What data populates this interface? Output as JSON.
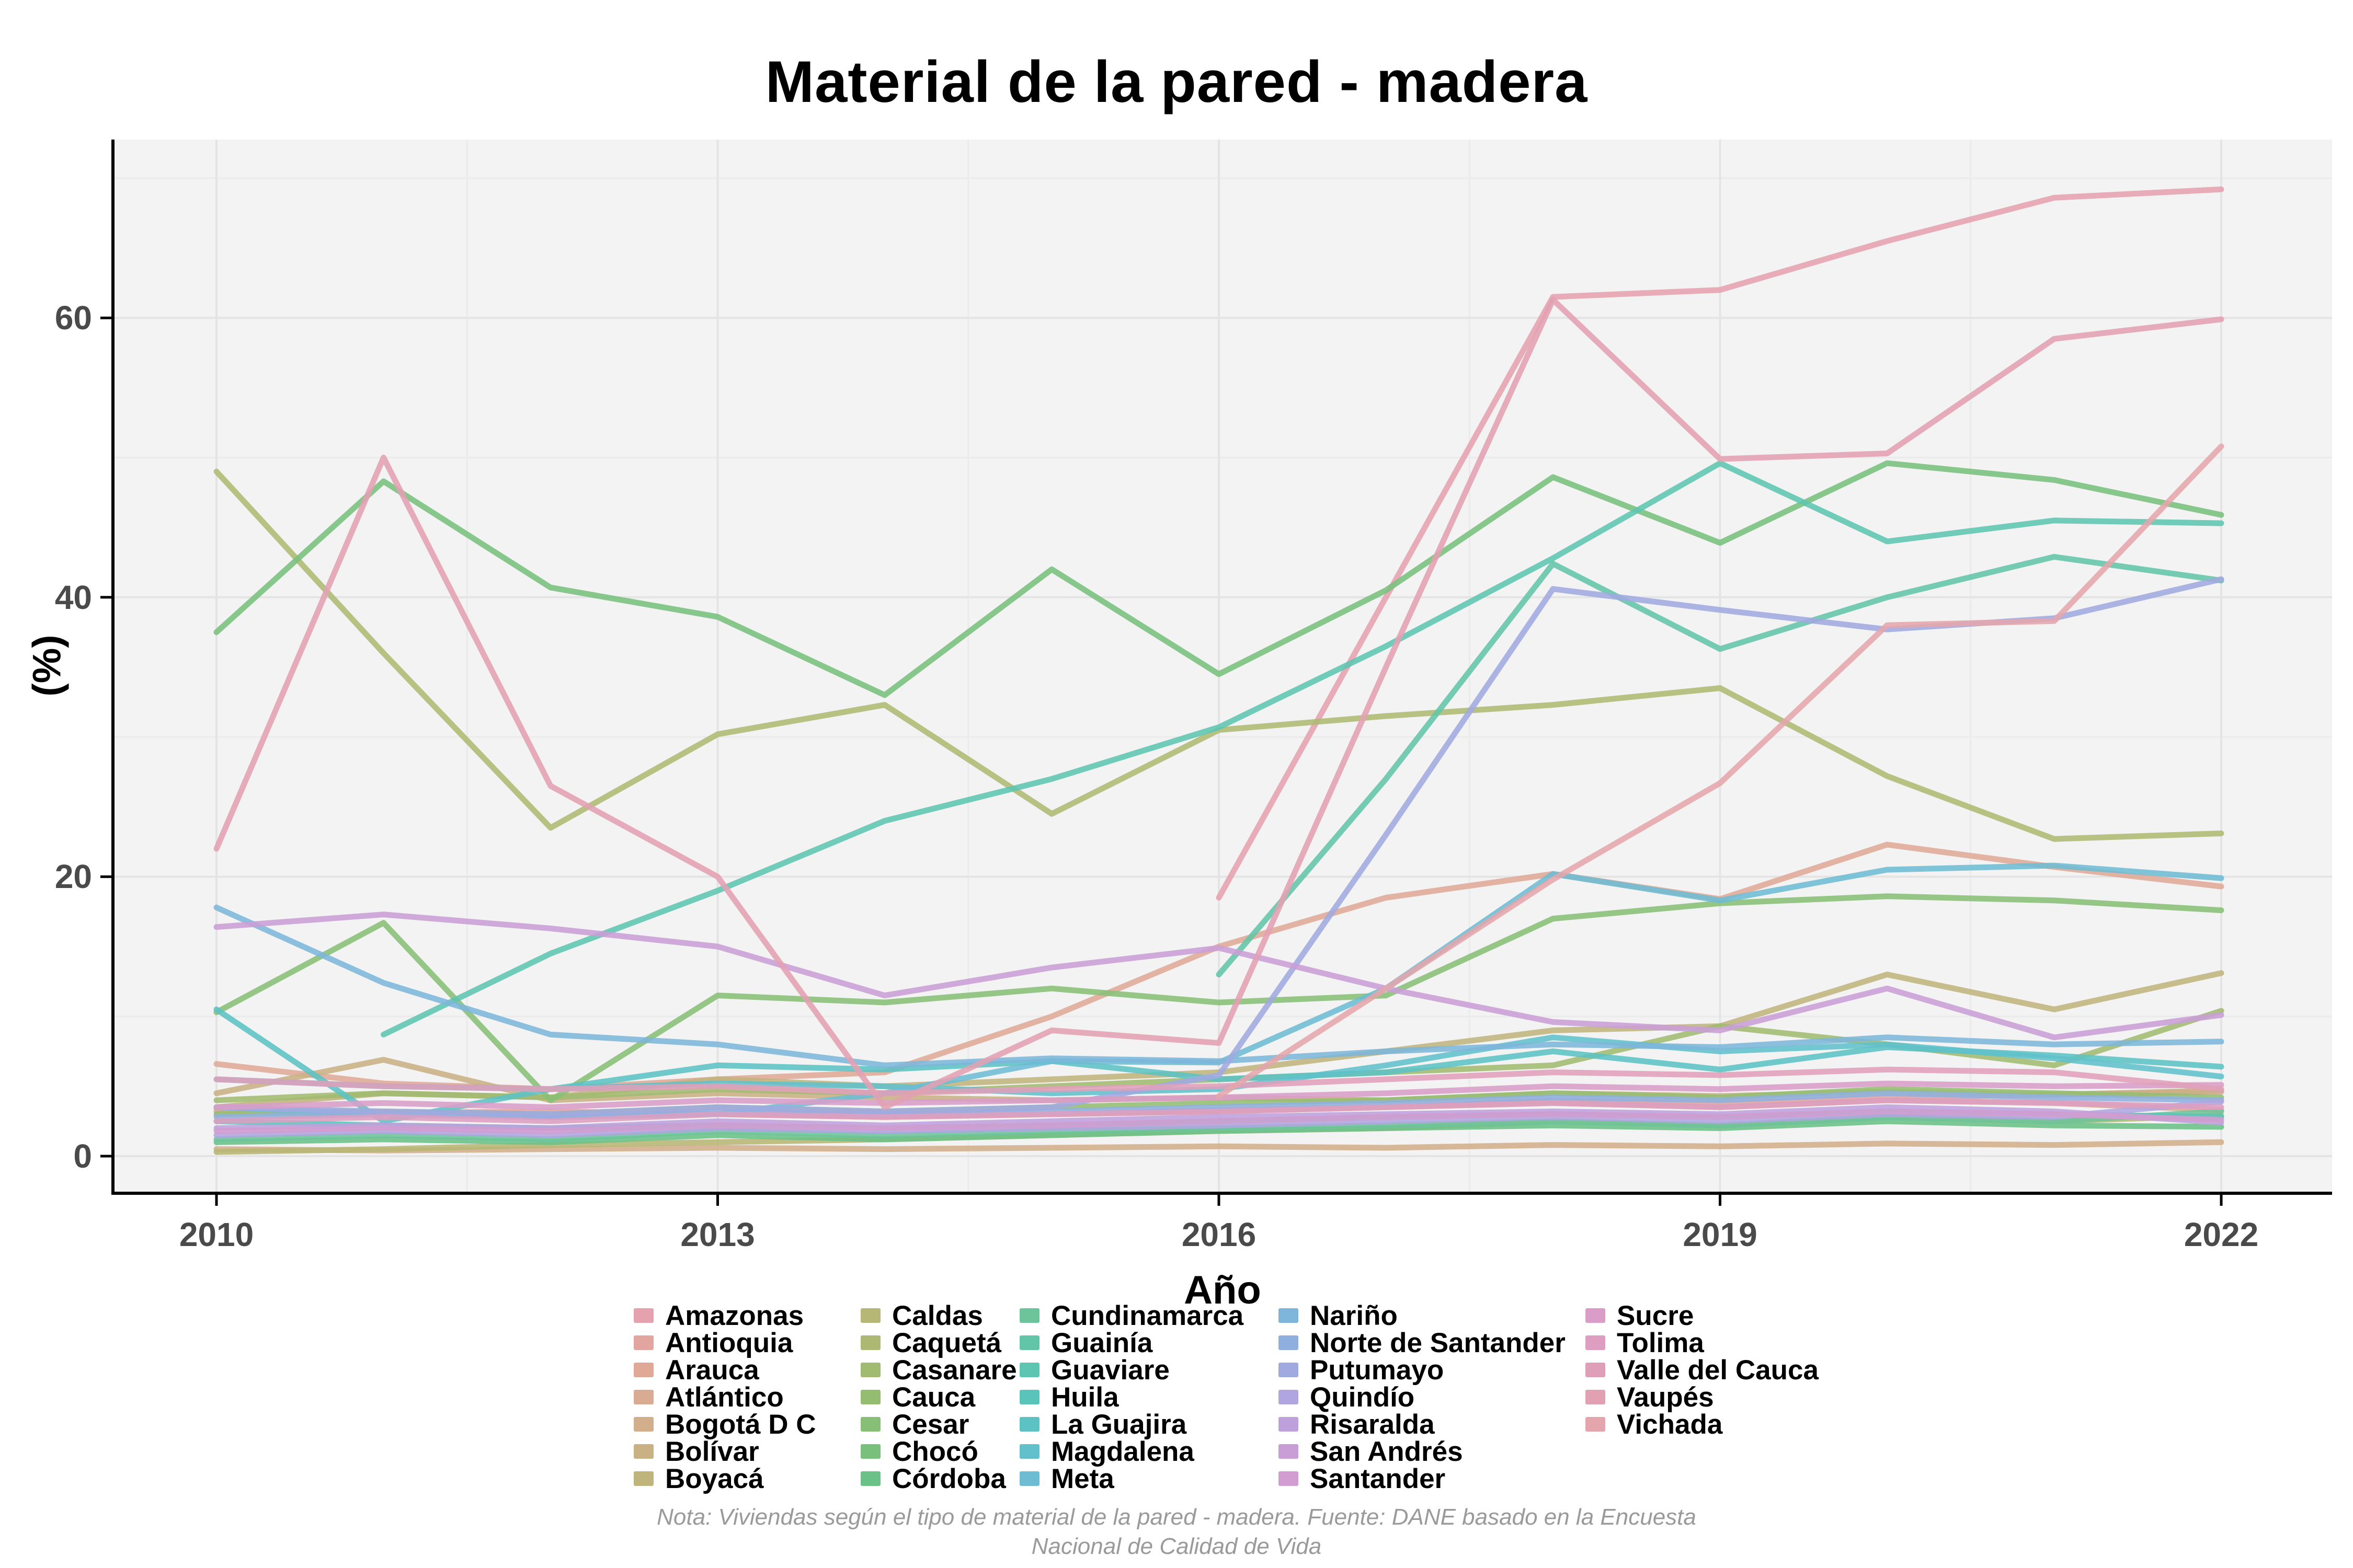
{
  "title": "Material de la pared - madera",
  "axes": {
    "x_label": "Año",
    "y_label": "(%)",
    "x_ticks": [
      2010,
      2013,
      2016,
      2019,
      2022
    ],
    "y_ticks": [
      0,
      20,
      40,
      60
    ]
  },
  "caption": {
    "line1": "Nota: Viviendas según el tipo de material de la pared - madera. Fuente: DANE basado en la Encuesta",
    "line2": "Nacional de Calidad de Vida"
  },
  "panel": {
    "background": "#f3f3f3",
    "grid_major": "#e4e4e4",
    "grid_minor": "#ebebeb",
    "axis_line": "#000000",
    "tick_text_color": "#4a4a4a"
  },
  "chart_data": {
    "type": "line",
    "title": "Material de la pared - madera",
    "xlabel": "Año",
    "ylabel": "(%)",
    "xlim": [
      2009.4,
      2022.7
    ],
    "ylim": [
      -2.6,
      72.8
    ],
    "grid": true,
    "legend_position": "bottom",
    "legend_columns": 5,
    "x": [
      2010,
      2011,
      2012,
      2013,
      2014,
      2015,
      2016,
      2017,
      2018,
      2019,
      2020,
      2021,
      2022
    ],
    "x_minor_gridlines": [
      2011.5,
      2014.5,
      2017.5,
      2020.5
    ],
    "y_minor_gridlines": [
      10,
      30,
      50,
      70
    ],
    "series": [
      {
        "name": "Amazonas",
        "color": "#e5a2ae",
        "values": [
          null,
          null,
          null,
          null,
          null,
          null,
          18.5,
          40,
          61.5,
          62,
          65.5,
          68.6,
          69.2
        ]
      },
      {
        "name": "Antioquia",
        "color": "#e3a59f",
        "values": [
          3.4,
          3.1,
          3.2,
          3,
          2.9,
          3,
          3.3,
          3.5,
          4,
          3.8,
          4.2,
          4.4,
          4.6
        ]
      },
      {
        "name": "Arauca",
        "color": "#dfa897",
        "values": [
          6.6,
          5.2,
          4.8,
          5.5,
          6,
          10,
          15,
          18.5,
          20.2,
          18.4,
          22.3,
          20.7,
          19.3
        ]
      },
      {
        "name": "Atlántico",
        "color": "#d9ab92",
        "values": [
          3.2,
          3,
          2.8,
          3,
          2.8,
          3,
          3.2,
          3.5,
          3.8,
          3.5,
          4,
          3.8,
          3.3
        ]
      },
      {
        "name": "Bogotá D C",
        "color": "#d2ae8a",
        "values": [
          0.5,
          0.4,
          0.5,
          0.6,
          0.5,
          0.6,
          0.7,
          0.6,
          0.8,
          0.7,
          0.9,
          0.8,
          1
        ]
      },
      {
        "name": "Bolívar",
        "color": "#cab184",
        "values": [
          4.5,
          6.9,
          4,
          4.5,
          4.2,
          4,
          4.2,
          4,
          4.5,
          4.3,
          4.6,
          4.4,
          4.7
        ]
      },
      {
        "name": "Boyacá",
        "color": "#c0b47d",
        "values": [
          3.5,
          4.5,
          4.2,
          5.5,
          5,
          5.5,
          6,
          7.5,
          9,
          9.3,
          13,
          10.5,
          13.1
        ]
      },
      {
        "name": "Caldas",
        "color": "#b7b775",
        "values": [
          0.3,
          0.5,
          0.8,
          1,
          1.2,
          1.5,
          1.8,
          2,
          2.5,
          2.2,
          2.8,
          2.5,
          2.9
        ]
      },
      {
        "name": "Caquetá",
        "color": "#adb972",
        "values": [
          49,
          36,
          23.5,
          30.2,
          32.3,
          24.5,
          30.5,
          31.5,
          32.3,
          33.5,
          27.2,
          22.7,
          23.1
        ]
      },
      {
        "name": "Casanare",
        "color": "#a1bb70",
        "values": [
          4,
          4.5,
          4.2,
          4.8,
          4.5,
          5,
          5.5,
          6,
          6.5,
          9.3,
          8,
          6.5,
          10.4
        ]
      },
      {
        "name": "Cauca",
        "color": "#94bd72",
        "values": [
          3,
          3.2,
          3,
          3.5,
          3.2,
          3.5,
          3.8,
          4,
          4.5,
          4.2,
          4.8,
          4.5,
          4.2
        ]
      },
      {
        "name": "Cesar",
        "color": "#87bf76",
        "values": [
          10.3,
          16.7,
          4,
          11.5,
          11,
          12,
          11,
          11.5,
          17,
          18.1,
          18.6,
          18.3,
          17.6
        ]
      },
      {
        "name": "Chocó",
        "color": "#79c07c",
        "values": [
          37.5,
          48.3,
          40.7,
          38.6,
          33,
          42,
          34.5,
          40.5,
          48.6,
          43.9,
          49.6,
          48.4,
          45.9
        ]
      },
      {
        "name": "Córdoba",
        "color": "#6bc187",
        "values": [
          1,
          1.2,
          1,
          1.5,
          1.2,
          1.5,
          1.8,
          2,
          2.2,
          2,
          2.5,
          2.2,
          2.1
        ]
      },
      {
        "name": "Cundinamarca",
        "color": "#6dc49b",
        "values": [
          1.2,
          1.5,
          1.2,
          1.8,
          1.5,
          1.8,
          2,
          2.2,
          2.5,
          2.2,
          2.8,
          2.5,
          3.2
        ]
      },
      {
        "name": "Guainía",
        "color": "#63c5a7",
        "values": [
          null,
          null,
          null,
          null,
          null,
          null,
          13,
          27,
          42.4,
          36.3,
          40,
          42.9,
          41.2
        ]
      },
      {
        "name": "Guaviare",
        "color": "#5dc5b1",
        "values": [
          null,
          8.7,
          14.5,
          19,
          24,
          27,
          30.7,
          36.5,
          42.8,
          49.6,
          44,
          45.5,
          45.3
        ]
      },
      {
        "name": "Huila",
        "color": "#5ac4ba",
        "values": [
          2.5,
          2.2,
          2,
          2.2,
          2,
          2.2,
          2.5,
          2.8,
          3,
          2.8,
          3.2,
          3,
          2.8
        ]
      },
      {
        "name": "La Guajira",
        "color": "#5cc2c3",
        "values": [
          10.5,
          2.5,
          4.8,
          6.5,
          6.2,
          6.8,
          5.5,
          6,
          7.5,
          6.2,
          7.8,
          7.2,
          6.4
        ]
      },
      {
        "name": "Magdalena",
        "color": "#61c0cb",
        "values": [
          5.5,
          5,
          4.8,
          5.2,
          5,
          4.5,
          4.8,
          6.5,
          8.5,
          7.5,
          8,
          7,
          5.7
        ]
      },
      {
        "name": "Meta",
        "color": "#6dbcd4",
        "values": [
          3.5,
          3,
          2.8,
          3,
          4.5,
          6.8,
          6.7,
          12,
          20.2,
          18.3,
          20.5,
          20.8,
          19.9
        ]
      },
      {
        "name": "Nariño",
        "color": "#7db6da",
        "values": [
          17.8,
          12.4,
          8.7,
          8,
          6.5,
          7,
          6.8,
          7.5,
          8,
          7.8,
          8.5,
          8,
          8.2
        ]
      },
      {
        "name": "Norte de Santander",
        "color": "#8fb0de",
        "values": [
          2.8,
          3,
          2.8,
          3.2,
          3,
          3.2,
          3.5,
          3.8,
          4.2,
          4,
          4.5,
          4.2,
          4
        ]
      },
      {
        "name": "Putumayo",
        "color": "#a0aae0",
        "values": [
          3.5,
          3.2,
          3,
          3.5,
          3.2,
          3.5,
          5.8,
          23,
          40.6,
          39.1,
          37.7,
          38.5,
          41.3
        ]
      },
      {
        "name": "Quindío",
        "color": "#b0a5df",
        "values": [
          1.5,
          1.8,
          1.5,
          2,
          1.8,
          2,
          2.2,
          2.5,
          2.8,
          2.5,
          3,
          2.8,
          3.9
        ]
      },
      {
        "name": "Risaralda",
        "color": "#bea1dc",
        "values": [
          2,
          2.2,
          2,
          2.5,
          2.2,
          2.5,
          2.8,
          3,
          3.2,
          3,
          3.5,
          3.2,
          2.4
        ]
      },
      {
        "name": "San Andrés",
        "color": "#c99ed6",
        "values": [
          16.4,
          17.3,
          16.3,
          15,
          11.5,
          13.5,
          14.9,
          12,
          9.6,
          9,
          12,
          8.5,
          10.1
        ]
      },
      {
        "name": "Santander",
        "color": "#d29dd0",
        "values": [
          1.8,
          2,
          1.8,
          2.2,
          2,
          2.2,
          2.5,
          2.8,
          3,
          2.8,
          3.2,
          3,
          2.6
        ]
      },
      {
        "name": "Sucre",
        "color": "#d99dc8",
        "values": [
          3.5,
          3.8,
          3.5,
          4,
          3.8,
          4,
          4.2,
          4.5,
          5,
          4.8,
          5.2,
          5,
          5.1
        ]
      },
      {
        "name": "Tolima",
        "color": "#dd9ec1",
        "values": [
          2.5,
          2.8,
          2.5,
          3,
          2.8,
          3,
          3.2,
          3.5,
          3.8,
          3.5,
          4,
          3.8,
          3.5
        ]
      },
      {
        "name": "Valle del Cauca",
        "color": "#e09fb9",
        "values": [
          5.5,
          5,
          4.8,
          5,
          4.5,
          4.8,
          5,
          5.5,
          6,
          5.8,
          6.2,
          6,
          4.8
        ]
      },
      {
        "name": "Vaupés",
        "color": "#e2a1b3",
        "values": [
          22,
          50,
          26.5,
          20,
          3.5,
          9,
          8.1,
          35,
          61.3,
          49.9,
          50.3,
          58.5,
          59.9
        ]
      },
      {
        "name": "Vichada",
        "color": "#e4a6ac",
        "values": [
          null,
          null,
          null,
          null,
          null,
          null,
          4.3,
          12,
          19.8,
          26.7,
          38,
          38.3,
          50.8
        ]
      }
    ]
  }
}
